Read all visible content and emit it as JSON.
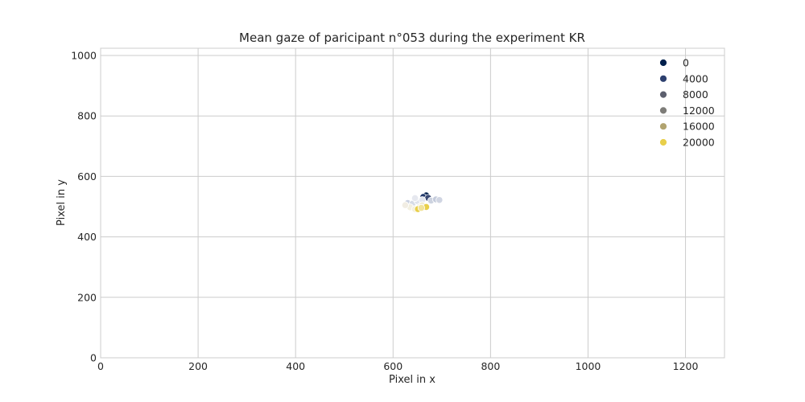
{
  "chart_data": {
    "type": "scatter",
    "title": "Mean gaze of paricipant n°053 during the experiment KR",
    "xlabel": "Pixel in x",
    "ylabel": "Pixel in y",
    "xlim": [
      0,
      1280
    ],
    "ylim": [
      0,
      1024
    ],
    "xticks": [
      "0",
      "200",
      "400",
      "600",
      "800",
      "1000",
      "1200"
    ],
    "yticks": [
      "0",
      "200",
      "400",
      "600",
      "800",
      "1000"
    ],
    "grid": true,
    "legend_position": "top-right",
    "legend": [
      {
        "label": "0",
        "color": "#00204c"
      },
      {
        "label": "4000",
        "color": "#2c3f6e"
      },
      {
        "label": "8000",
        "color": "#5c5f6e"
      },
      {
        "label": "12000",
        "color": "#7d7c78"
      },
      {
        "label": "16000",
        "color": "#b1a36f"
      },
      {
        "label": "20000",
        "color": "#e8cf4a"
      }
    ],
    "points": [
      {
        "x": 668,
        "y": 537,
        "color": "#00204c"
      },
      {
        "x": 662,
        "y": 532,
        "color": "#233a6c"
      },
      {
        "x": 672,
        "y": 529,
        "color": "#3b4a73"
      },
      {
        "x": 630,
        "y": 512,
        "color": "#c9d0e0"
      },
      {
        "x": 640,
        "y": 510,
        "color": "#d6dbe6"
      },
      {
        "x": 650,
        "y": 518,
        "color": "#dfe3ec"
      },
      {
        "x": 660,
        "y": 522,
        "color": "#e3e6ee"
      },
      {
        "x": 678,
        "y": 520,
        "color": "#cdd3e0"
      },
      {
        "x": 688,
        "y": 524,
        "color": "#c4cbdb"
      },
      {
        "x": 695,
        "y": 522,
        "color": "#d0d5e2"
      },
      {
        "x": 645,
        "y": 528,
        "color": "#e6e8ef"
      },
      {
        "x": 655,
        "y": 500,
        "color": "#ece9df"
      },
      {
        "x": 635,
        "y": 498,
        "color": "#f2efe0"
      },
      {
        "x": 625,
        "y": 505,
        "color": "#f1ede3"
      },
      {
        "x": 645,
        "y": 492,
        "color": "#f4f0dc"
      },
      {
        "x": 660,
        "y": 505,
        "color": "#f0ecd8"
      },
      {
        "x": 651,
        "y": 492,
        "color": "#e8cf4a"
      },
      {
        "x": 668,
        "y": 499,
        "color": "#e8cf4a"
      },
      {
        "x": 658,
        "y": 496,
        "color": "#f1e39a"
      }
    ]
  }
}
